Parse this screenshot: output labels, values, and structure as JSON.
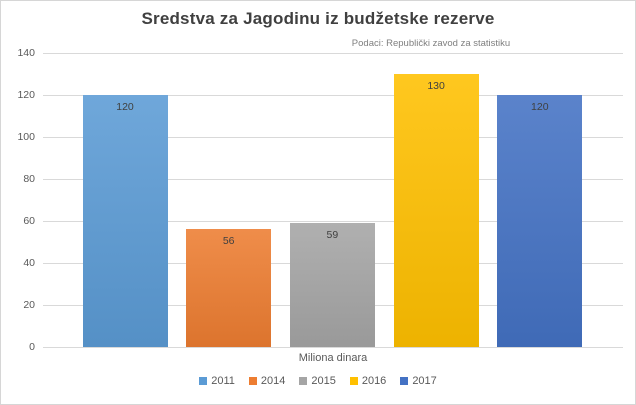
{
  "chart_data": {
    "type": "bar",
    "title": "Sredstva za Jagodinu iz budžetske rezerve",
    "subtitle": "Podaci: Republički zavod za statistiku",
    "xlabel": "Miliona dinara",
    "ylabel": "",
    "categories": [
      "2011",
      "2014",
      "2015",
      "2016",
      "2017"
    ],
    "values": [
      120,
      56,
      59,
      130,
      120
    ],
    "data_labels": [
      "120",
      "56",
      "59",
      "130",
      "120"
    ],
    "colors": [
      "#5B9BD5",
      "#ED7D31",
      "#A5A5A5",
      "#FFC000",
      "#4472C4"
    ],
    "ylim": [
      0,
      140
    ],
    "ytick_step": 20,
    "ytick_labels": [
      "0",
      "20",
      "40",
      "60",
      "80",
      "100",
      "120",
      "140"
    ],
    "grid": true,
    "gridline_color": "#d9d9d9",
    "legend_position": "bottom",
    "legend_entries": [
      "2011",
      "2014",
      "2015",
      "2016",
      "2017"
    ],
    "title_color": "#404040",
    "subtitle_color": "#7f7f7f",
    "axis_text_color": "#595959",
    "data_label_color": "#404040"
  }
}
